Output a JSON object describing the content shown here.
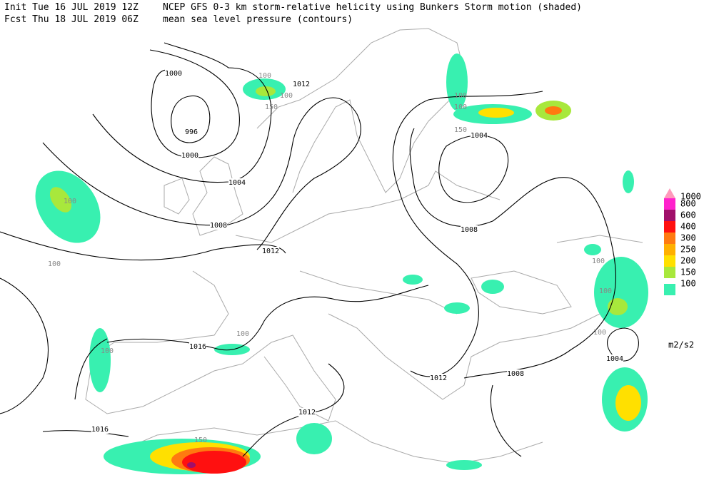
{
  "header": {
    "init": "Init  Tue 16 JUL 2019 12Z",
    "title": "NCEP GFS 0-3 km storm-relative helicity using Bunkers Storm motion (shaded)",
    "fcst": "Fcst Thu 18 JUL 2019 06Z",
    "subtitle": "mean sea level pressure (contours)"
  },
  "legend": {
    "unit": "m2/s2",
    "levels": [
      {
        "label": "1000",
        "color": "#ff99bb"
      },
      {
        "label": "800",
        "color": "#ff22cc"
      },
      {
        "label": "600",
        "color": "#a0106a"
      },
      {
        "label": "400",
        "color": "#ff1010"
      },
      {
        "label": "300",
        "color": "#ff7a10"
      },
      {
        "label": "250",
        "color": "#ffb000"
      },
      {
        "label": "200",
        "color": "#ffe000"
      },
      {
        "label": "150",
        "color": "#a8e83c"
      },
      {
        "label": "100",
        "color": "#38f0b0"
      }
    ]
  },
  "contour_labels": [
    "1000",
    "996",
    "1000",
    "1012",
    "1004",
    "1008",
    "1012",
    "1016",
    "1016",
    "1012",
    "1012",
    "1008",
    "1008",
    "1004",
    "1004"
  ],
  "shade_labels": [
    "100",
    "100",
    "100",
    "100",
    "100",
    "100",
    "100",
    "100",
    "100",
    "100",
    "100",
    "150",
    "150",
    "150"
  ]
}
